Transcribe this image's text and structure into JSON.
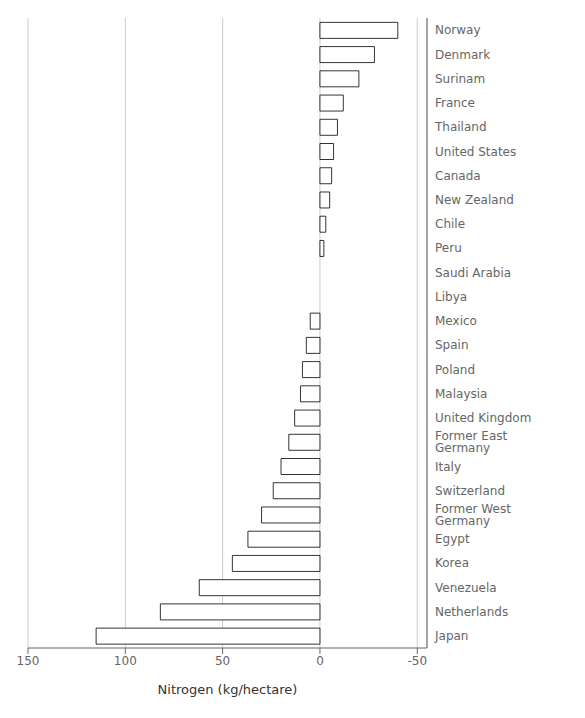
{
  "chart_data": {
    "type": "bar",
    "orientation": "horizontal",
    "xlabel": "Nitrogen (kg/hectare)",
    "categories": [
      "Norway",
      "Denmark",
      "Surinam",
      "France",
      "Thailand",
      "United States",
      "Canada",
      "New Zealand",
      "Chile",
      "Peru",
      "Saudi Arabia",
      "Libya",
      "Mexico",
      "Spain",
      "Poland",
      "Malaysia",
      "United Kingdom",
      "Former East Germany",
      "Italy",
      "Switzerland",
      "Former West Germany",
      "Egypt",
      "Korea",
      "Venezuela",
      "Netherlands",
      "Japan"
    ],
    "values": [
      -40,
      -28,
      -20,
      -12,
      -9,
      -7,
      -6,
      -5,
      -3,
      -2,
      0,
      0,
      5,
      7,
      9,
      10,
      13,
      16,
      20,
      24,
      30,
      37,
      45,
      62,
      82,
      115
    ],
    "color": "white",
    "xlim": [
      150,
      -55
    ],
    "xticks": [
      150,
      100,
      50,
      0,
      -50
    ],
    "grid": true
  }
}
